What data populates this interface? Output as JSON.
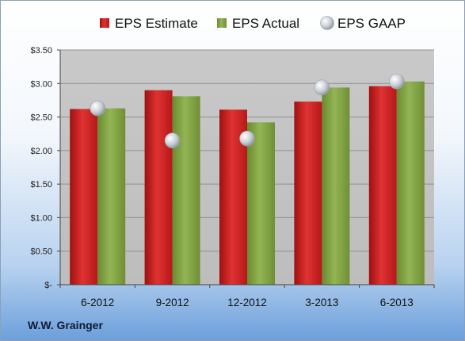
{
  "footer": {
    "company": "W.W. Grainger"
  },
  "colors": {
    "estimate": "#c81e1e",
    "actual": "#7e9e3f",
    "gaap": "#c8ccd3",
    "plot_bg": "#c4c4c4"
  },
  "chart_data": {
    "type": "bar",
    "title": "",
    "xlabel": "",
    "ylabel": "",
    "categories": [
      "6-2012",
      "9-2012",
      "12-2012",
      "3-2013",
      "6-2013"
    ],
    "series": [
      {
        "name": "EPS Estimate",
        "kind": "bar",
        "values": [
          2.62,
          2.9,
          2.61,
          2.73,
          2.96
        ]
      },
      {
        "name": "EPS Actual",
        "kind": "bar",
        "values": [
          2.63,
          2.81,
          2.42,
          2.94,
          3.03
        ]
      },
      {
        "name": "EPS GAAP",
        "kind": "marker",
        "values": [
          2.63,
          2.15,
          2.18,
          2.94,
          3.03
        ]
      }
    ],
    "ylim": [
      0,
      3.5
    ],
    "yticks": [
      0,
      0.5,
      1.0,
      1.5,
      2.0,
      2.5,
      3.0,
      3.5
    ],
    "ytick_labels": [
      "$-",
      "$0.50",
      "$1.00",
      "$1.50",
      "$2.00",
      "$2.50",
      "$3.00",
      "$3.50"
    ],
    "grid": true,
    "legend": "top"
  }
}
